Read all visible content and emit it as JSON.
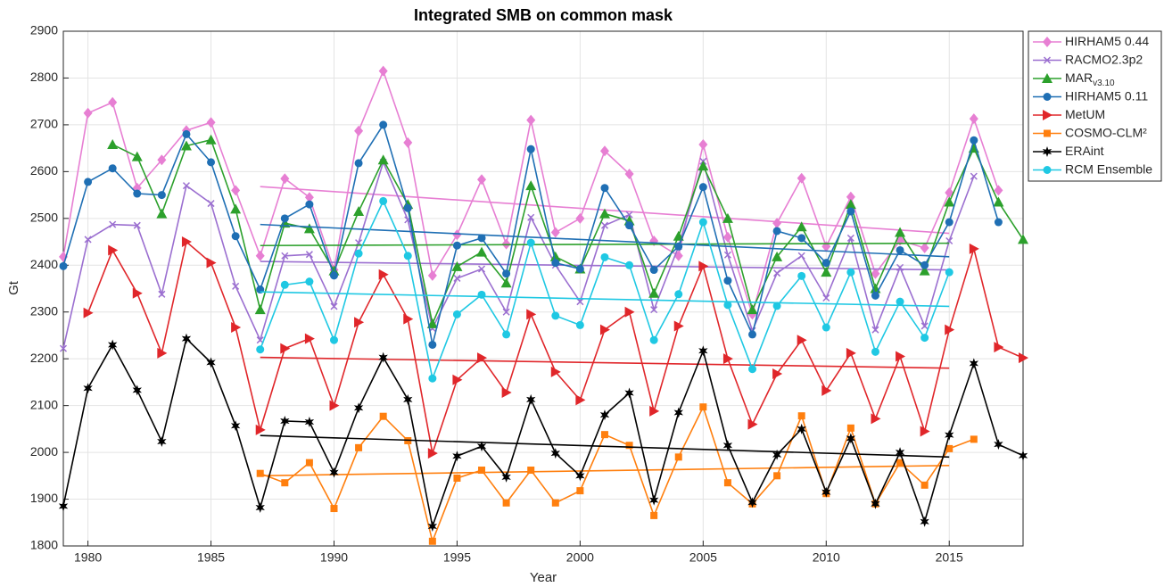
{
  "chart_data": {
    "type": "line",
    "title": "Integrated SMB on common mask",
    "x_label": "Year",
    "y_label": "Gt",
    "x": [
      1979,
      1980,
      1981,
      1982,
      1983,
      1984,
      1985,
      1986,
      1987,
      1988,
      1989,
      1990,
      1991,
      1992,
      1993,
      1994,
      1995,
      1996,
      1997,
      1998,
      1999,
      2000,
      2001,
      2002,
      2003,
      2004,
      2005,
      2006,
      2007,
      2008,
      2009,
      2010,
      2011,
      2012,
      2013,
      2014,
      2015,
      2016,
      2017,
      2018
    ],
    "xlim": [
      1979,
      2018
    ],
    "xticks": [
      1980,
      1985,
      1990,
      1995,
      2000,
      2005,
      2010,
      2015
    ],
    "ylim": [
      1800,
      2900
    ],
    "yticks": [
      1800,
      1900,
      2000,
      2100,
      2200,
      2300,
      2400,
      2500,
      2600,
      2700,
      2800,
      2900
    ],
    "grid": true,
    "legend": "outside-right",
    "series": [
      {
        "name": "HIRHAM5 0.44",
        "color": "#e77fd3",
        "marker": "diamond",
        "values": [
          2418,
          2725,
          2748,
          2565,
          2625,
          2688,
          2705,
          2560,
          2420,
          2585,
          2545,
          2390,
          2687,
          2815,
          2662,
          2378,
          2465,
          2583,
          2445,
          2710,
          2470,
          2500,
          2644,
          2595,
          2452,
          2420,
          2658,
          2460,
          2295,
          2490,
          2586,
          2440,
          2546,
          2382,
          2453,
          2437,
          2555,
          2713,
          2560,
          null
        ],
        "trend": {
          "x": [
            1987,
            2015
          ],
          "values": [
            2568,
            2468
          ]
        }
      },
      {
        "name": "RACMO2.3p2",
        "color": "#9b6fd0",
        "marker": "x",
        "values": [
          2222,
          2455,
          2487,
          2485,
          2338,
          2570,
          2532,
          2355,
          2240,
          2420,
          2423,
          2312,
          2448,
          2620,
          2497,
          2265,
          2372,
          2392,
          2300,
          2502,
          2400,
          2322,
          2485,
          2508,
          2305,
          2440,
          2622,
          2422,
          2260,
          2383,
          2420,
          2330,
          2458,
          2262,
          2395,
          2270,
          2452,
          2590,
          null,
          null
        ],
        "trend": {
          "x": [
            1987,
            2015
          ],
          "values": [
            2408,
            2390
          ]
        }
      },
      {
        "name": "MAR",
        "name_subscript": "v3.10",
        "color": "#2ca02c",
        "marker": "triangle-up",
        "values": [
          null,
          null,
          2658,
          2632,
          2510,
          2655,
          2668,
          2520,
          2305,
          2490,
          2478,
          2388,
          2515,
          2625,
          2530,
          2275,
          2397,
          2428,
          2362,
          2570,
          2418,
          2392,
          2510,
          2495,
          2340,
          2462,
          2612,
          2500,
          2305,
          2418,
          2482,
          2385,
          2530,
          2350,
          2470,
          2388,
          2535,
          2650,
          2535,
          2455
        ],
        "trend": {
          "x": [
            1987,
            2015
          ],
          "values": [
            2442,
            2447
          ]
        }
      },
      {
        "name": "HIRHAM5 0.11",
        "color": "#1f6fb4",
        "marker": "circle",
        "values": [
          2398,
          2578,
          2607,
          2553,
          2550,
          2680,
          2620,
          2462,
          2348,
          2500,
          2530,
          2378,
          2618,
          2700,
          2522,
          2230,
          2442,
          2458,
          2382,
          2648,
          2405,
          2392,
          2565,
          2485,
          2390,
          2440,
          2567,
          2367,
          2252,
          2473,
          2458,
          2405,
          2515,
          2335,
          2432,
          2400,
          2492,
          2667,
          2492,
          null
        ],
        "trend": {
          "x": [
            1987,
            2015
          ],
          "values": [
            2487,
            2418
          ]
        }
      },
      {
        "name": "MetUM",
        "color": "#e0262a",
        "marker": "triangle-right",
        "values": [
          null,
          2298,
          2432,
          2340,
          2212,
          2450,
          2405,
          2267,
          2048,
          2222,
          2243,
          2100,
          2278,
          2380,
          2285,
          1998,
          2155,
          2202,
          2128,
          2295,
          2172,
          2112,
          2262,
          2300,
          2088,
          2270,
          2398,
          2200,
          2060,
          2168,
          2240,
          2132,
          2212,
          2072,
          2205,
          2045,
          2262,
          2435,
          2225,
          2202
        ],
        "trend": {
          "x": [
            1987,
            2015
          ],
          "values": [
            2203,
            2180
          ]
        }
      },
      {
        "name": "COSMO-CLM²",
        "color": "#ff7f0e",
        "marker": "square",
        "values": [
          null,
          null,
          null,
          null,
          null,
          null,
          null,
          null,
          1955,
          1935,
          1978,
          1880,
          2010,
          2077,
          2025,
          1810,
          1945,
          1962,
          1892,
          1962,
          1892,
          1918,
          2038,
          2015,
          1865,
          1990,
          2097,
          1935,
          1890,
          1950,
          2078,
          1912,
          2052,
          1890,
          1978,
          1930,
          2008,
          2028,
          null,
          null
        ],
        "trend": {
          "x": [
            1987,
            2015
          ],
          "values": [
            1950,
            1972
          ]
        }
      },
      {
        "name": "ERAint",
        "color": "#000000",
        "marker": "star",
        "values": [
          1885,
          2137,
          2230,
          2133,
          2023,
          2243,
          2192,
          2057,
          1882,
          2067,
          2065,
          1957,
          2095,
          2203,
          2113,
          1842,
          1992,
          2013,
          1947,
          2113,
          1998,
          1950,
          2080,
          2127,
          1898,
          2085,
          2217,
          2015,
          1893,
          1995,
          2050,
          1915,
          2030,
          1890,
          2000,
          1852,
          2037,
          2190,
          2017,
          1993
        ],
        "trend": {
          "x": [
            1987,
            2015
          ],
          "values": [
            2036,
            1990
          ]
        }
      },
      {
        "name": "RCM Ensemble",
        "color": "#1fc8e3",
        "marker": "circle",
        "values": [
          null,
          null,
          null,
          null,
          null,
          null,
          null,
          null,
          2220,
          2358,
          2365,
          2240,
          2425,
          2537,
          2420,
          2158,
          2295,
          2337,
          2252,
          2448,
          2292,
          2272,
          2417,
          2400,
          2240,
          2338,
          2492,
          2315,
          2178,
          2313,
          2377,
          2267,
          2385,
          2215,
          2322,
          2245,
          2385,
          null,
          null,
          null
        ],
        "trend": {
          "x": [
            1987,
            2015
          ],
          "values": [
            2343,
            2312
          ]
        }
      }
    ]
  }
}
